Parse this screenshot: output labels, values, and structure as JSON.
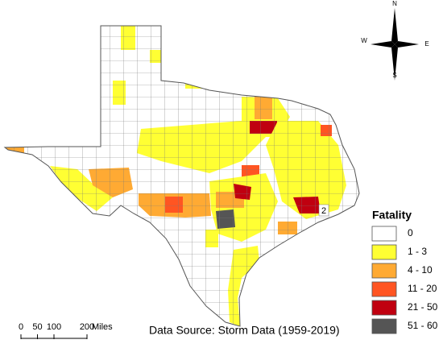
{
  "legend": {
    "title": "Fatality",
    "classes": [
      {
        "label": "0",
        "color": "#ffffff"
      },
      {
        "label": "1 - 3",
        "color": "#ffff33"
      },
      {
        "label": "4 - 10",
        "color": "#ffaa33"
      },
      {
        "label": "11 - 20",
        "color": "#ff5522"
      },
      {
        "label": "21 - 50",
        "color": "#c00010"
      },
      {
        "label": "51 - 60",
        "color": "#555555"
      }
    ]
  },
  "scale_bar": {
    "ticks": [
      0,
      50,
      100,
      200
    ],
    "unit": "Miles"
  },
  "source": "Data Source: Storm Data (1959-2019)",
  "compass": {
    "north": "N",
    "south": "S",
    "east": "E",
    "west": "W"
  },
  "annotation": "2"
}
